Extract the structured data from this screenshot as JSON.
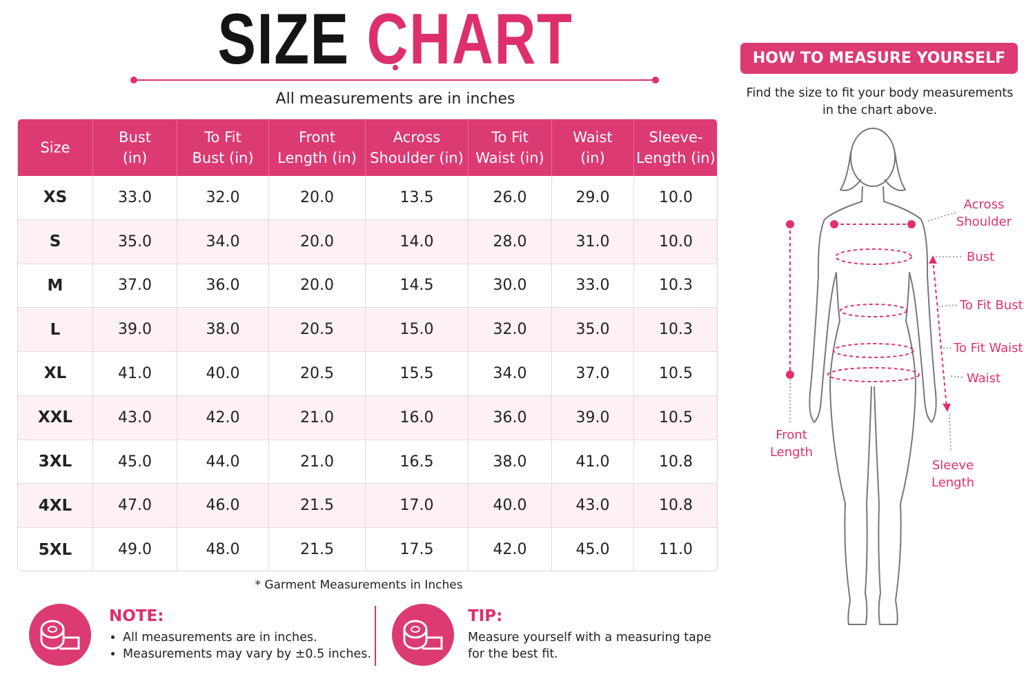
{
  "title": {
    "part1": "SIZE",
    "part2": "CHART"
  },
  "subtitle": "All measurements are in inches",
  "table": {
    "header": [
      [
        "Size"
      ],
      [
        "Bust",
        "(in)"
      ],
      [
        "To Fit",
        "Bust (in)"
      ],
      [
        "Front",
        "Length (in)"
      ],
      [
        "Across",
        "Shoulder (in)"
      ],
      [
        "To Fit",
        "Waist (in)"
      ],
      [
        "Waist",
        "(in)"
      ],
      [
        "Sleeve-",
        "Length (in)"
      ]
    ],
    "rows": [
      [
        "XS",
        "33.0",
        "32.0",
        "20.0",
        "13.5",
        "26.0",
        "29.0",
        "10.0"
      ],
      [
        "S",
        "35.0",
        "34.0",
        "20.0",
        "14.0",
        "28.0",
        "31.0",
        "10.0"
      ],
      [
        "M",
        "37.0",
        "36.0",
        "20.0",
        "14.5",
        "30.0",
        "33.0",
        "10.3"
      ],
      [
        "L",
        "39.0",
        "38.0",
        "20.5",
        "15.0",
        "32.0",
        "35.0",
        "10.3"
      ],
      [
        "XL",
        "41.0",
        "40.0",
        "20.5",
        "15.5",
        "34.0",
        "37.0",
        "10.5"
      ],
      [
        "XXL",
        "43.0",
        "42.0",
        "21.0",
        "16.0",
        "36.0",
        "39.0",
        "10.5"
      ],
      [
        "3XL",
        "45.0",
        "44.0",
        "21.0",
        "16.5",
        "38.0",
        "41.0",
        "10.8"
      ],
      [
        "4XL",
        "47.0",
        "46.0",
        "21.5",
        "17.0",
        "40.0",
        "43.0",
        "10.8"
      ],
      [
        "5XL",
        "49.0",
        "48.0",
        "21.5",
        "17.5",
        "42.0",
        "45.0",
        "11.0"
      ]
    ]
  },
  "footnote": "* Garment Measurements in Inches",
  "note": {
    "title": "NOTE:",
    "items": [
      "All measurements are in inches.",
      "Measurements may vary by ±0.5 inches."
    ]
  },
  "tip": {
    "title": "TIP:",
    "text": [
      "Measure yourself with a measuring tape",
      "for the best fit."
    ]
  },
  "guide": {
    "title": "HOW TO MEASURE YOURSELF",
    "text": [
      "Find the size to fit your body measurements",
      "in the chart above."
    ],
    "labels": [
      [
        "Across",
        "Shoulder"
      ],
      [
        "Bust"
      ],
      [
        "To Fit Bust"
      ],
      [
        "To Fit Waist"
      ],
      [
        "Waist"
      ],
      [
        "Front",
        "Length"
      ],
      [
        "Sleeve",
        "Length"
      ]
    ]
  }
}
